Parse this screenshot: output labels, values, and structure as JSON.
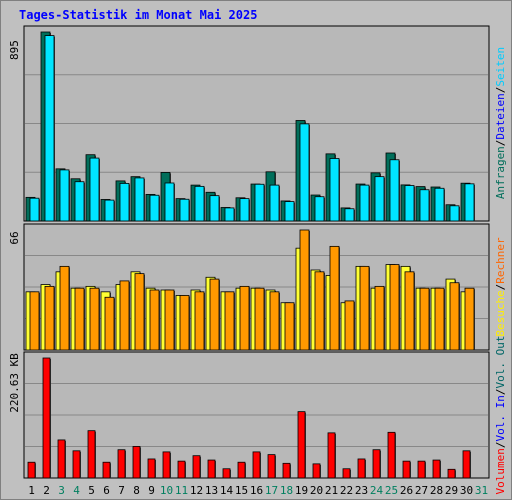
{
  "title": "Tages-Statistik im Monat Mai 2025",
  "colors": {
    "background": "#c0c0c0",
    "panel": "#b8b8b8",
    "grid": "#888888",
    "hits": "#006e5a",
    "files": "#00e5ff",
    "pages": "#00c8d8",
    "visits": "#ffff33",
    "sites": "#ff9900",
    "kbytes": "#ff0000",
    "volin": "#0033cc",
    "volout": "#006666",
    "day_default": "#000000",
    "day_weekend": "#007f5f"
  },
  "chart_data": [
    {
      "type": "bar",
      "name": "hits-files-pages",
      "ytick_label": "895",
      "ymax": 895,
      "legend": [
        {
          "label": "Anfragen",
          "color": "#006e5a"
        },
        {
          "label": "/",
          "color": "#000000"
        },
        {
          "label": "Dateien",
          "color": "#0000ff"
        },
        {
          "label": "/",
          "color": "#000000"
        },
        {
          "label": "Seiten",
          "color": "#00ccff"
        }
      ],
      "series": [
        {
          "name": "Anfragen",
          "values": [
            112,
            895,
            247,
            200,
            314,
            102,
            190,
            210,
            126,
            230,
            106,
            170,
            136,
            64,
            110,
            175,
            233,
            95,
            476,
            123,
            318,
            62,
            175,
            228,
            322,
            171,
            163,
            161,
            77,
            179
          ]
        },
        {
          "name": "Dateien",
          "values": [
            108,
            878,
            242,
            186,
            298,
            99,
            178,
            204,
            122,
            180,
            103,
            164,
            120,
            62,
            106,
            174,
            170,
            92,
            460,
            115,
            296,
            58,
            170,
            210,
            290,
            168,
            148,
            155,
            72,
            176
          ]
        }
      ]
    },
    {
      "type": "bar",
      "name": "visits-sites",
      "ytick_label": "66",
      "ymax": 66,
      "legend": [
        {
          "label": "Besuche",
          "color": "#ffee00"
        },
        {
          "label": "/",
          "color": "#000000"
        },
        {
          "label": "Rechner",
          "color": "#ff6600"
        }
      ],
      "series": [
        {
          "name": "Besuche",
          "values": [
            32,
            36,
            43,
            34,
            35,
            32,
            36,
            43,
            34,
            33,
            30,
            33,
            40,
            32,
            34,
            34,
            33,
            26,
            56,
            44,
            41,
            26,
            46,
            34,
            47,
            46,
            34,
            34,
            39,
            32
          ]
        },
        {
          "name": "Rechner",
          "values": [
            32,
            35,
            46,
            34,
            34,
            29,
            38,
            42,
            33,
            33,
            30,
            32,
            39,
            32,
            35,
            34,
            32,
            26,
            66,
            43,
            57,
            27,
            46,
            35,
            47,
            43,
            34,
            34,
            37,
            34
          ]
        }
      ]
    },
    {
      "type": "bar",
      "name": "volume",
      "ytick_label": "220.63 KB",
      "ymax": 220.63,
      "legend": [
        {
          "label": "Volumen",
          "color": "#ff0000"
        },
        {
          "label": "/",
          "color": "#000000"
        },
        {
          "label": "Vol. In",
          "color": "#0000ff"
        },
        {
          "label": "/",
          "color": "#000000"
        },
        {
          "label": "Vol. Out",
          "color": "#006666"
        }
      ],
      "series": [
        {
          "name": "Volumen",
          "values": [
            29,
            220.63,
            70,
            50,
            87,
            29,
            52,
            58,
            35,
            48,
            31,
            41,
            33,
            17,
            29,
            48,
            43,
            27,
            122,
            26,
            83,
            17,
            35,
            52,
            84,
            31,
            31,
            33,
            16,
            50
          ]
        }
      ]
    }
  ],
  "x_axis": {
    "days": [
      "1",
      "2",
      "3",
      "4",
      "5",
      "6",
      "7",
      "8",
      "9",
      "10",
      "11",
      "12",
      "13",
      "14",
      "15",
      "16",
      "17",
      "18",
      "19",
      "20",
      "21",
      "22",
      "23",
      "24",
      "25",
      "26",
      "27",
      "28",
      "29",
      "30",
      "31"
    ],
    "weekend_indexes": [
      2,
      3,
      9,
      10,
      16,
      17,
      23,
      24,
      30
    ]
  }
}
